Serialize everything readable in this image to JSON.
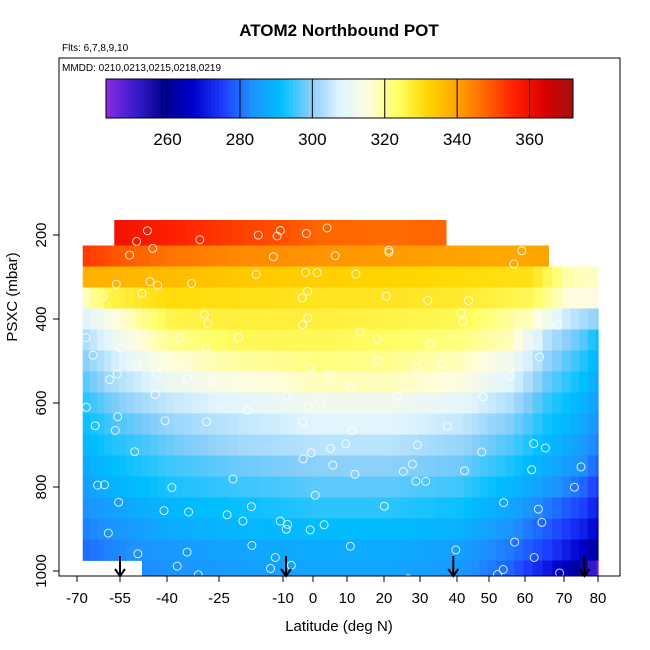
{
  "chart_data": {
    "type": "heatmap",
    "title": "ATOM2 Northbound POT",
    "flights_label": "Flts: 6,7,8,9,10",
    "dates_label": "MMDD: 0210,0213,0215,0218,0219",
    "xlabel": "Latitude (deg N)",
    "ylabel": "PSXC (mbar)",
    "xlim": [
      -70,
      82
    ],
    "ylim": [
      1010,
      0
    ],
    "x_ticks": [
      -70,
      -55,
      -40,
      -25,
      -10,
      0,
      10,
      20,
      30,
      40,
      50,
      60,
      70,
      80
    ],
    "x_tick_labels": [
      "-70",
      "-55",
      "-40",
      "-25",
      "-10",
      "0",
      "10",
      "20",
      "30",
      "40",
      "50",
      "60",
      "70",
      "80"
    ],
    "y_ticks": [
      200,
      400,
      600,
      800,
      1000
    ],
    "y_tick_labels": [
      "200",
      "400",
      "600",
      "800",
      "1000"
    ],
    "colorbar": {
      "range": [
        243,
        372
      ],
      "ticks": [
        260,
        280,
        300,
        320,
        340,
        360
      ],
      "tick_labels": [
        "260",
        "280",
        "300",
        "320",
        "340",
        "360"
      ],
      "colors": [
        "#8a2be2",
        "#3a1ccf",
        "#00008b",
        "#0000cd",
        "#1e3cff",
        "#1e90ff",
        "#00bfff",
        "#87cefa",
        "#e0f4ff",
        "#fffde0",
        "#ffff66",
        "#ffd700",
        "#ffa500",
        "#ff6600",
        "#ff2000",
        "#dd0000",
        "#a01010"
      ]
    },
    "potential_temperature_layers": [
      {
        "p": 200,
        "values": [
          [
            -57,
            359
          ],
          [
            -40,
            356
          ],
          [
            -20,
            352
          ],
          [
            0,
            348
          ],
          [
            20,
            347
          ],
          [
            36,
            348
          ]
        ]
      },
      {
        "p": 250,
        "values": [
          [
            -68,
            353
          ],
          [
            -55,
            349
          ],
          [
            -40,
            346
          ],
          [
            -20,
            343
          ],
          [
            0,
            342
          ],
          [
            20,
            341
          ],
          [
            40,
            340
          ],
          [
            55,
            339
          ],
          [
            65,
            340
          ]
        ]
      },
      {
        "p": 300,
        "values": [
          [
            -68,
            338
          ],
          [
            -55,
            337
          ],
          [
            -40,
            336
          ],
          [
            -20,
            334
          ],
          [
            0,
            333
          ],
          [
            20,
            332
          ],
          [
            40,
            331
          ],
          [
            60,
            330
          ],
          [
            70,
            319
          ],
          [
            79,
            317
          ]
        ]
      },
      {
        "p": 350,
        "values": [
          [
            -68,
            318
          ],
          [
            -60,
            326
          ],
          [
            -40,
            331
          ],
          [
            -20,
            330
          ],
          [
            0,
            329
          ],
          [
            20,
            329
          ],
          [
            40,
            328
          ],
          [
            60,
            325
          ],
          [
            70,
            316
          ],
          [
            79,
            315
          ]
        ]
      },
      {
        "p": 400,
        "values": [
          [
            -68,
            308
          ],
          [
            -60,
            314
          ],
          [
            -50,
            320
          ],
          [
            -40,
            326
          ],
          [
            -20,
            327
          ],
          [
            0,
            327
          ],
          [
            20,
            326
          ],
          [
            40,
            325
          ],
          [
            60,
            318
          ],
          [
            70,
            305
          ],
          [
            79,
            300
          ]
        ]
      },
      {
        "p": 450,
        "values": [
          [
            -68,
            303
          ],
          [
            -60,
            309
          ],
          [
            -50,
            316
          ],
          [
            -40,
            321
          ],
          [
            -20,
            325
          ],
          [
            0,
            325
          ],
          [
            20,
            324
          ],
          [
            40,
            322
          ],
          [
            55,
            318
          ],
          [
            65,
            303
          ],
          [
            75,
            296
          ],
          [
            79,
            291
          ]
        ]
      },
      {
        "p": 500,
        "values": [
          [
            -68,
            300
          ],
          [
            -60,
            305
          ],
          [
            -50,
            311
          ],
          [
            -40,
            316
          ],
          [
            -20,
            320
          ],
          [
            0,
            322
          ],
          [
            20,
            321
          ],
          [
            40,
            318
          ],
          [
            55,
            312
          ],
          [
            65,
            300
          ],
          [
            75,
            293
          ],
          [
            79,
            289
          ]
        ]
      },
      {
        "p": 550,
        "values": [
          [
            -68,
            297
          ],
          [
            -60,
            302
          ],
          [
            -50,
            306
          ],
          [
            -40,
            311
          ],
          [
            -20,
            315
          ],
          [
            0,
            318
          ],
          [
            20,
            318
          ],
          [
            40,
            315
          ],
          [
            55,
            308
          ],
          [
            65,
            297
          ],
          [
            75,
            291
          ],
          [
            79,
            287
          ]
        ]
      },
      {
        "p": 600,
        "values": [
          [
            -68,
            294
          ],
          [
            -60,
            298
          ],
          [
            -50,
            302
          ],
          [
            -40,
            305
          ],
          [
            -20,
            309
          ],
          [
            0,
            312
          ],
          [
            20,
            312
          ],
          [
            40,
            309
          ],
          [
            55,
            303
          ],
          [
            65,
            294
          ],
          [
            75,
            289
          ],
          [
            79,
            285
          ]
        ]
      },
      {
        "p": 650,
        "values": [
          [
            -68,
            292
          ],
          [
            -60,
            295
          ],
          [
            -50,
            298
          ],
          [
            -40,
            301
          ],
          [
            -20,
            305
          ],
          [
            0,
            308
          ],
          [
            20,
            308
          ],
          [
            40,
            305
          ],
          [
            55,
            299
          ],
          [
            65,
            292
          ],
          [
            75,
            287
          ],
          [
            79,
            283
          ]
        ]
      },
      {
        "p": 700,
        "values": [
          [
            -68,
            290
          ],
          [
            -60,
            293
          ],
          [
            -50,
            295
          ],
          [
            -40,
            298
          ],
          [
            -20,
            302
          ],
          [
            0,
            304
          ],
          [
            20,
            304
          ],
          [
            40,
            301
          ],
          [
            55,
            296
          ],
          [
            65,
            290
          ],
          [
            75,
            285
          ],
          [
            79,
            281
          ]
        ]
      },
      {
        "p": 750,
        "values": [
          [
            -68,
            288
          ],
          [
            -60,
            291
          ],
          [
            -50,
            293
          ],
          [
            -40,
            295
          ],
          [
            -20,
            298
          ],
          [
            0,
            300
          ],
          [
            20,
            300
          ],
          [
            40,
            298
          ],
          [
            55,
            293
          ],
          [
            65,
            288
          ],
          [
            75,
            283
          ],
          [
            79,
            278
          ]
        ]
      },
      {
        "p": 800,
        "values": [
          [
            -68,
            286
          ],
          [
            -60,
            289
          ],
          [
            -50,
            291
          ],
          [
            -40,
            293
          ],
          [
            -20,
            295
          ],
          [
            0,
            297
          ],
          [
            20,
            297
          ],
          [
            40,
            295
          ],
          [
            55,
            290
          ],
          [
            65,
            285
          ],
          [
            75,
            279
          ],
          [
            79,
            274
          ]
        ]
      },
      {
        "p": 850,
        "values": [
          [
            -68,
            284
          ],
          [
            -60,
            286
          ],
          [
            -50,
            288
          ],
          [
            -40,
            290
          ],
          [
            -20,
            292
          ],
          [
            0,
            294
          ],
          [
            20,
            294
          ],
          [
            40,
            292
          ],
          [
            55,
            287
          ],
          [
            65,
            281
          ],
          [
            75,
            275
          ],
          [
            79,
            270
          ]
        ]
      },
      {
        "p": 900,
        "values": [
          [
            -68,
            282
          ],
          [
            -60,
            284
          ],
          [
            -50,
            286
          ],
          [
            -40,
            288
          ],
          [
            -20,
            290
          ],
          [
            0,
            291
          ],
          [
            20,
            291
          ],
          [
            40,
            289
          ],
          [
            55,
            284
          ],
          [
            65,
            278
          ],
          [
            75,
            271
          ],
          [
            79,
            266
          ]
        ]
      },
      {
        "p": 950,
        "values": [
          [
            -68,
            280
          ],
          [
            -60,
            282
          ],
          [
            -50,
            284
          ],
          [
            -40,
            285
          ],
          [
            -20,
            287
          ],
          [
            0,
            288
          ],
          [
            20,
            288
          ],
          [
            40,
            286
          ],
          [
            55,
            281
          ],
          [
            65,
            275
          ],
          [
            75,
            266
          ],
          [
            79,
            260
          ]
        ]
      },
      {
        "p": 1000,
        "values": [
          [
            -48,
            283
          ],
          [
            -40,
            284
          ],
          [
            -20,
            286
          ],
          [
            0,
            287
          ],
          [
            20,
            287
          ],
          [
            40,
            285
          ],
          [
            55,
            279
          ],
          [
            65,
            270
          ],
          [
            72,
            262
          ],
          [
            77,
            252
          ],
          [
            79,
            248
          ]
        ]
      }
    ],
    "arrows_at_latitude": [
      -55,
      -9,
      39,
      76
    ]
  }
}
